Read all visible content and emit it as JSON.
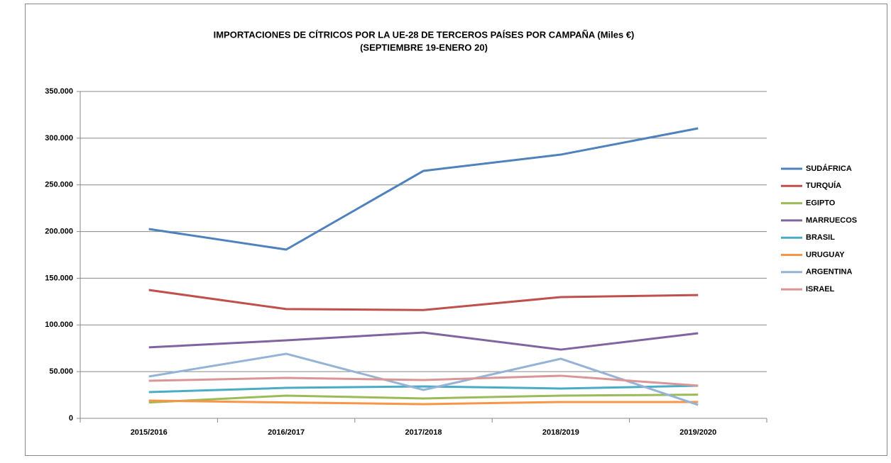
{
  "chart_data": {
    "type": "line",
    "title": "IMPORTACIONES DE CÍTRICOS POR LA UE-28 DE TERCEROS PAÍSES POR CAMPAÑA  (Miles €)",
    "subtitle": "(SEPTIEMBRE 19-ENERO 20)",
    "categories": [
      "2015/2016",
      "2016/2017",
      "2017/2018",
      "2018/2019",
      "2019/2020"
    ],
    "ylim": [
      0,
      350000
    ],
    "yticks": [
      0,
      {
        "value": 50000,
        "label": "50.000"
      },
      {
        "value": 100000,
        "label": "100.000"
      },
      {
        "value": 150000,
        "label": "150.000"
      },
      {
        "value": 200000,
        "label": "200.000"
      },
      {
        "value": 250000,
        "label": "250.000"
      },
      {
        "value": 300000,
        "label": "300.000"
      },
      {
        "value": 350000,
        "label": "350.000"
      }
    ],
    "grid": true,
    "legend": "right",
    "series": [
      {
        "name": "SUDÁFRICA",
        "color": "#4f81bd",
        "values": [
          202700,
          180700,
          265000,
          282400,
          310500
        ]
      },
      {
        "name": "TURQUÍA",
        "color": "#c0504d",
        "values": [
          137400,
          117000,
          116000,
          129800,
          132000
        ]
      },
      {
        "name": "EGIPTO",
        "color": "#9bbb59",
        "values": [
          17000,
          24300,
          21300,
          24300,
          25300
        ]
      },
      {
        "name": "MARRUECOS",
        "color": "#8064a2",
        "values": [
          76000,
          83500,
          91900,
          73600,
          91100
        ]
      },
      {
        "name": "BRASIL",
        "color": "#4bacc6",
        "values": [
          28100,
          32600,
          34200,
          31900,
          34900
        ]
      },
      {
        "name": "URUGUAY",
        "color": "#f79646",
        "values": [
          19000,
          17000,
          15200,
          17500,
          17500
        ]
      },
      {
        "name": "ARGENTINA",
        "color": "#95b3d7",
        "values": [
          44800,
          69100,
          30400,
          63800,
          14400
        ]
      },
      {
        "name": "ISRAEL",
        "color": "#d99694",
        "values": [
          40200,
          43300,
          41000,
          45600,
          35000
        ]
      }
    ]
  }
}
